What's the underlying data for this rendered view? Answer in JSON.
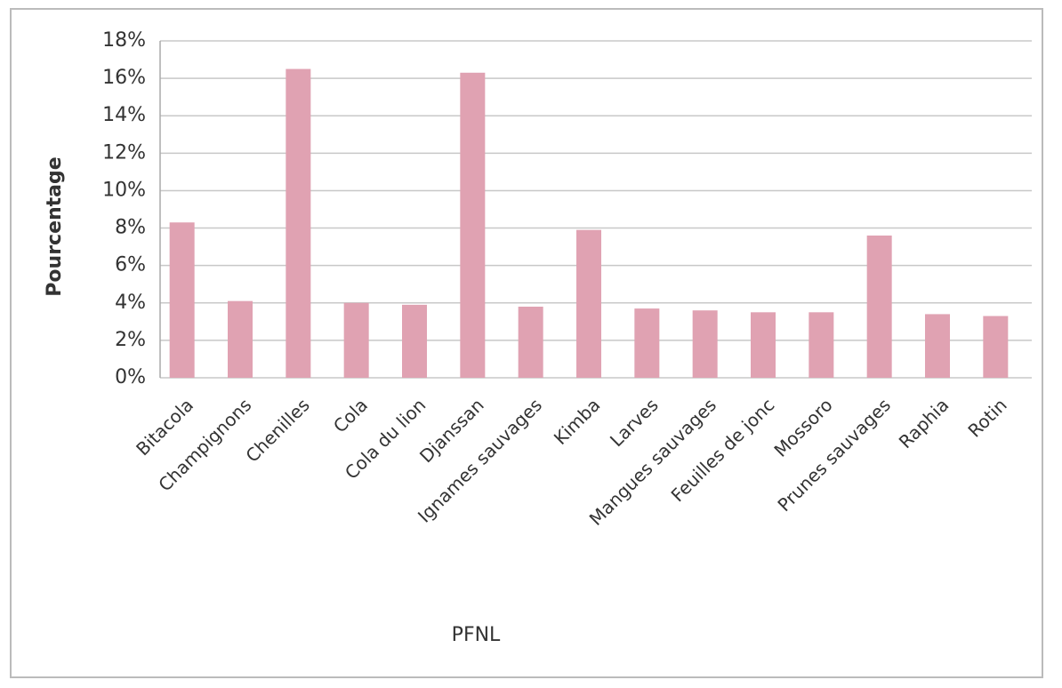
{
  "chart_data": {
    "type": "bar",
    "x_label": "PFNL",
    "y_label": "Pourcentage",
    "categories": [
      "Bitacola",
      "Champignons",
      "Chenilles",
      "Cola",
      "Cola du lion",
      "Djanssan",
      "Ignames sauvages",
      "Kimba",
      "Larves",
      "Mangues sauvages",
      "Feuilles de jonc",
      "Mossoro",
      "Prunes sauvages",
      "Raphia",
      "Rotin"
    ],
    "values": [
      8.3,
      4.1,
      16.5,
      4.0,
      3.9,
      16.3,
      3.8,
      7.9,
      3.7,
      3.6,
      3.5,
      3.5,
      7.6,
      3.4,
      3.3
    ],
    "color": "#e0a2b2",
    "ylim": [
      0,
      18
    ],
    "yticks": [
      {
        "value": 0,
        "label": "0%"
      },
      {
        "value": 2,
        "label": "2%"
      },
      {
        "value": 4,
        "label": "4%"
      },
      {
        "value": 6,
        "label": "6%"
      },
      {
        "value": 8,
        "label": "8%"
      },
      {
        "value": 10,
        "label": "10%"
      },
      {
        "value": 12,
        "label": "12%"
      },
      {
        "value": 14,
        "label": "14%"
      },
      {
        "value": 16,
        "label": "16%"
      },
      {
        "value": 18,
        "label": "18%"
      }
    ],
    "grid": true
  }
}
